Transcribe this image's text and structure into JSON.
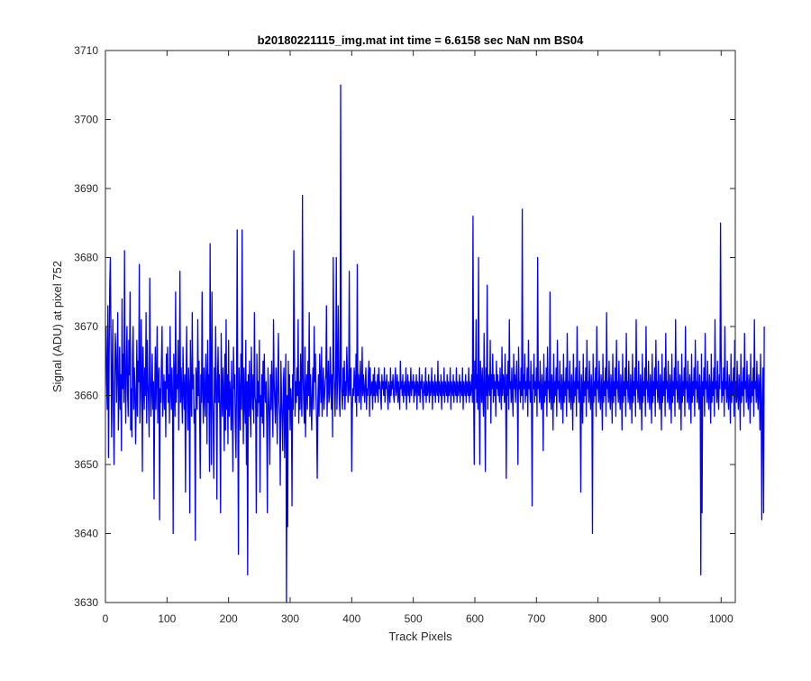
{
  "chart_data": {
    "type": "line",
    "title": "b20180221115_img.mat int time = 6.6158 sec  NaN nm BS04",
    "xlabel": "Track Pixels",
    "ylabel": "Signal (ADU) at pixel 752",
    "xlim": [
      0,
      1023
    ],
    "ylim": [
      3630,
      3710
    ],
    "xticks": [
      0,
      100,
      200,
      300,
      400,
      500,
      600,
      700,
      800,
      900,
      1000
    ],
    "yticks": [
      3630,
      3640,
      3650,
      3660,
      3670,
      3680,
      3690,
      3700,
      3710
    ],
    "grid": false,
    "legend": "none",
    "line_color": "#0000ff",
    "series": [
      {
        "x_start": 1,
        "x_step": 1,
        "values": [
          3670,
          3662,
          3658,
          3673,
          3651,
          3665,
          3676,
          3680,
          3668,
          3654,
          3663,
          3671,
          3657,
          3650,
          3661,
          3669,
          3666,
          3659,
          3664,
          3672,
          3655,
          3660,
          3667,
          3658,
          3663,
          3652,
          3674,
          3661,
          3666,
          3659,
          3681,
          3662,
          3656,
          3665,
          3670,
          3660,
          3657,
          3668,
          3663,
          3675,
          3655,
          3661,
          3654,
          3666,
          3670,
          3658,
          3664,
          3661,
          3653,
          3659,
          3668,
          3657,
          3665,
          3662,
          3679,
          3656,
          3660,
          3671,
          3663,
          3649,
          3667,
          3662,
          3658,
          3664,
          3660,
          3672,
          3656,
          3668,
          3662,
          3659,
          3654,
          3677,
          3663,
          3657,
          3661,
          3666,
          3658,
          3662,
          3645,
          3660,
          3667,
          3658,
          3663,
          3670,
          3656,
          3662,
          3664,
          3642,
          3661,
          3659,
          3665,
          3670,
          3657,
          3660,
          3663,
          3658,
          3662,
          3654,
          3666,
          3661,
          3667,
          3659,
          3663,
          3656,
          3670,
          3661,
          3658,
          3664,
          3660,
          3640,
          3666,
          3662,
          3657,
          3675,
          3659,
          3663,
          3661,
          3668,
          3655,
          3662,
          3678,
          3659,
          3664,
          3660,
          3656,
          3667,
          3661,
          3658,
          3663,
          3646,
          3662,
          3670,
          3659,
          3655,
          3664,
          3661,
          3643,
          3668,
          3660,
          3657,
          3672,
          3661,
          3663,
          3656,
          3658,
          3639,
          3664,
          3662,
          3658,
          3671,
          3660,
          3665,
          3657,
          3648,
          3663,
          3659,
          3675,
          3661,
          3656,
          3664,
          3660,
          3657,
          3666,
          3662,
          3653,
          3668,
          3659,
          3663,
          3649,
          3682,
          3661,
          3650,
          3675,
          3660,
          3656,
          3648,
          3664,
          3659,
          3670,
          3662,
          3645,
          3662,
          3667,
          3659,
          3663,
          3656,
          3643,
          3669,
          3661,
          3657,
          3664,
          3660,
          3652,
          3666,
          3655,
          3671,
          3658,
          3663,
          3653,
          3668,
          3657,
          3662,
          3660,
          3655,
          3665,
          3658,
          3649,
          3667,
          3661,
          3663,
          3656,
          3651,
          3662,
          3684,
          3658,
          3637,
          3664,
          3660,
          3655,
          3666,
          3658,
          3684,
          3661,
          3653,
          3664,
          3659,
          3656,
          3668,
          3650,
          3662,
          3634,
          3663,
          3657,
          3665,
          3659,
          3654,
          3667,
          3661,
          3658,
          3663,
          3656,
          3672,
          3660,
          3659,
          3643,
          3666,
          3657,
          3662,
          3659,
          3668,
          3646,
          3660,
          3657,
          3663,
          3656,
          3665,
          3654,
          3666,
          3661,
          3659,
          3662,
          3656,
          3643,
          3664,
          3660,
          3657,
          3650,
          3663,
          3658,
          3665,
          3660,
          3654,
          3671,
          3662,
          3659,
          3656,
          3664,
          3660,
          3653,
          3663,
          3669,
          3659,
          3657,
          3647,
          3665,
          3660,
          3656,
          3652,
          3662,
          3664,
          3651,
          3660,
          3666,
          3630,
          3660,
          3641,
          3665,
          3658,
          3663,
          3655,
          3661,
          3659,
          3644,
          3663,
          3658,
          3681,
          3667,
          3657,
          3662,
          3659,
          3664,
          3660,
          3671,
          3656,
          3662,
          3658,
          3666,
          3660,
          3657,
          3689,
          3663,
          3659,
          3656,
          3667,
          3654,
          3661,
          3663,
          3658,
          3665,
          3660,
          3672,
          3657,
          3663,
          3659,
          3655,
          3661,
          3664,
          3658,
          3670,
          3662,
          3666,
          3660,
          3656,
          3648,
          3659,
          3663,
          3657,
          3666,
          3662,
          3659,
          3667,
          3657,
          3661,
          3664,
          3658,
          3660,
          3662,
          3663,
          3673,
          3657,
          3661,
          3665,
          3659,
          3660,
          3667,
          3663,
          3658,
          3663,
          3654,
          3680,
          3665,
          3661,
          3657,
          3663,
          3680,
          3658,
          3662,
          3673,
          3664,
          3659,
          3657,
          3705,
          3662,
          3660,
          3658,
          3664,
          3660,
          3665,
          3658,
          3662,
          3660,
          3667,
          3663,
          3659,
          3661,
          3678,
          3660,
          3663,
          3664,
          3649,
          3658,
          3661,
          3660,
          3664,
          3662,
          3659,
          3666,
          3657,
          3679,
          3660,
          3663,
          3659,
          3662,
          3665,
          3658,
          3661,
          3667,
          3660,
          3663,
          3661,
          3659,
          3662,
          3664,
          3658,
          3661,
          3660,
          3663,
          3665,
          3657,
          3664,
          3660,
          3661,
          3662,
          3658,
          3663,
          3660,
          3664,
          3659,
          3662,
          3661,
          3660,
          3663,
          3659,
          3664,
          3661,
          3662,
          3660,
          3658,
          3663,
          3661,
          3662,
          3660,
          3664,
          3659,
          3662,
          3661,
          3663,
          3660,
          3658,
          3662,
          3661,
          3659,
          3664,
          3660,
          3662,
          3661,
          3663,
          3660,
          3659,
          3662,
          3664,
          3660,
          3661,
          3663,
          3659,
          3662,
          3660,
          3658,
          3665,
          3661,
          3662,
          3660,
          3663,
          3659,
          3661,
          3662,
          3660,
          3664,
          3658,
          3661,
          3663,
          3660,
          3662,
          3659,
          3661,
          3664,
          3660,
          3662,
          3661,
          3663,
          3659,
          3662,
          3660,
          3661,
          3663,
          3658,
          3662,
          3661,
          3660,
          3664,
          3659,
          3662,
          3661,
          3663,
          3660,
          3658,
          3662,
          3661,
          3660,
          3664,
          3659,
          3662,
          3660,
          3661,
          3663,
          3659,
          3662,
          3660,
          3661,
          3664,
          3658,
          3662,
          3661,
          3660,
          3663,
          3659,
          3662,
          3661,
          3660,
          3665,
          3659,
          3662,
          3661,
          3660,
          3663,
          3658,
          3662,
          3661,
          3660,
          3664,
          3659,
          3662,
          3661,
          3660,
          3663,
          3659,
          3662,
          3660,
          3661,
          3664,
          3658,
          3662,
          3661,
          3660,
          3663,
          3659,
          3662,
          3661,
          3660,
          3664,
          3659,
          3662,
          3660,
          3661,
          3663,
          3659,
          3662,
          3661,
          3660,
          3664,
          3658,
          3662,
          3661,
          3660,
          3663,
          3659,
          3662,
          3661,
          3660,
          3664,
          3659,
          3662,
          3660,
          3661,
          3663,
          3659,
          3686,
          3660,
          3650,
          3665,
          3661,
          3671,
          3659,
          3663,
          3658,
          3680,
          3661,
          3650,
          3665,
          3662,
          3659,
          3664,
          3660,
          3657,
          3669,
          3661,
          3649,
          3664,
          3660,
          3676,
          3658,
          3663,
          3662,
          3660,
          3668,
          3656,
          3663,
          3661,
          3666,
          3659,
          3663,
          3660,
          3662,
          3657,
          3665,
          3661,
          3663,
          3660,
          3662,
          3659,
          3664,
          3661,
          3658,
          3667,
          3660,
          3663,
          3662,
          3659,
          3666,
          3661,
          3648,
          3663,
          3660,
          3665,
          3658,
          3671,
          3661,
          3662,
          3659,
          3664,
          3660,
          3657,
          3666,
          3661,
          3663,
          3659,
          3662,
          3665,
          3660,
          3650,
          3667,
          3661,
          3662,
          3659,
          3664,
          3660,
          3687,
          3658,
          3663,
          3661,
          3666,
          3659,
          3662,
          3660,
          3664,
          3657,
          3668,
          3661,
          3662,
          3659,
          3665,
          3660,
          3644,
          3663,
          3661,
          3666,
          3659,
          3662,
          3660,
          3664,
          3657,
          3680,
          3661,
          3662,
          3659,
          3665,
          3660,
          3658,
          3663,
          3661,
          3652,
          3666,
          3659,
          3662,
          3660,
          3664,
          3657,
          3667,
          3661,
          3662,
          3659,
          3675,
          3660,
          3658,
          3663,
          3661,
          3655,
          3666,
          3659,
          3662,
          3660,
          3664,
          3657,
          3668,
          3661,
          3662,
          3659,
          3665,
          3660,
          3658,
          3663,
          3661,
          3656,
          3666,
          3659,
          3662,
          3660,
          3664,
          3657,
          3669,
          3661,
          3662,
          3659,
          3665,
          3660,
          3658,
          3663,
          3661,
          3655,
          3666,
          3659,
          3662,
          3660,
          3664,
          3657,
          3670,
          3661,
          3662,
          3659,
          3665,
          3660,
          3646,
          3663,
          3661,
          3656,
          3666,
          3659,
          3662,
          3660,
          3664,
          3657,
          3668,
          3661,
          3662,
          3659,
          3665,
          3660,
          3658,
          3663,
          3661,
          3640,
          3666,
          3659,
          3662,
          3660,
          3664,
          3657,
          3670,
          3661,
          3662,
          3659,
          3665,
          3660,
          3658,
          3663,
          3661,
          3655,
          3666,
          3659,
          3662,
          3660,
          3664,
          3657,
          3672,
          3661,
          3662,
          3659,
          3665,
          3660,
          3658,
          3663,
          3661,
          3656,
          3666,
          3659,
          3662,
          3660,
          3664,
          3657,
          3668,
          3661,
          3662,
          3659,
          3665,
          3660,
          3658,
          3663,
          3661,
          3655,
          3666,
          3659,
          3662,
          3660,
          3664,
          3657,
          3669,
          3661,
          3662,
          3659,
          3665,
          3660,
          3658,
          3663,
          3661,
          3656,
          3666,
          3659,
          3662,
          3660,
          3664,
          3657,
          3671,
          3661,
          3662,
          3659,
          3665,
          3660,
          3658,
          3663,
          3661,
          3655,
          3666,
          3659,
          3662,
          3660,
          3664,
          3657,
          3670,
          3661,
          3662,
          3659,
          3665,
          3660,
          3658,
          3663,
          3661,
          3656,
          3666,
          3659,
          3662,
          3660,
          3664,
          3657,
          3668,
          3661,
          3662,
          3659,
          3665,
          3660,
          3658,
          3663,
          3661,
          3655,
          3666,
          3659,
          3662,
          3660,
          3664,
          3657,
          3669,
          3661,
          3662,
          3659,
          3665,
          3660,
          3658,
          3663,
          3661,
          3656,
          3666,
          3659,
          3662,
          3660,
          3664,
          3657,
          3671,
          3661,
          3662,
          3659,
          3665,
          3660,
          3658,
          3663,
          3661,
          3655,
          3666,
          3659,
          3662,
          3660,
          3664,
          3657,
          3670,
          3661,
          3662,
          3659,
          3665,
          3660,
          3658,
          3663,
          3661,
          3656,
          3666,
          3659,
          3662,
          3660,
          3664,
          3657,
          3668,
          3661,
          3662,
          3659,
          3665,
          3660,
          3658,
          3663,
          3661,
          3634,
          3666,
          3643,
          3662,
          3660,
          3664,
          3657,
          3669,
          3661,
          3662,
          3659,
          3665,
          3660,
          3658,
          3663,
          3661,
          3656,
          3666,
          3659,
          3662,
          3660,
          3664,
          3657,
          3671,
          3661,
          3662,
          3659,
          3665,
          3660,
          3658,
          3663,
          3661,
          3685,
          3666,
          3659,
          3662,
          3660,
          3664,
          3657,
          3670,
          3661,
          3662,
          3659,
          3665,
          3660,
          3658,
          3663,
          3661,
          3656,
          3666,
          3659,
          3662,
          3660,
          3664,
          3657,
          3668,
          3661,
          3662,
          3659,
          3665,
          3660,
          3658,
          3663,
          3661,
          3655,
          3666,
          3659,
          3662,
          3660,
          3664,
          3657,
          3669,
          3661,
          3662,
          3659,
          3665,
          3660,
          3658,
          3663,
          3661,
          3656,
          3666,
          3659,
          3662,
          3660,
          3664,
          3657,
          3671,
          3661,
          3662,
          3659,
          3665,
          3660,
          3658,
          3663,
          3661,
          3655,
          3666,
          3659,
          3642,
          3660,
          3664,
          3643,
          3670
        ]
      }
    ]
  }
}
